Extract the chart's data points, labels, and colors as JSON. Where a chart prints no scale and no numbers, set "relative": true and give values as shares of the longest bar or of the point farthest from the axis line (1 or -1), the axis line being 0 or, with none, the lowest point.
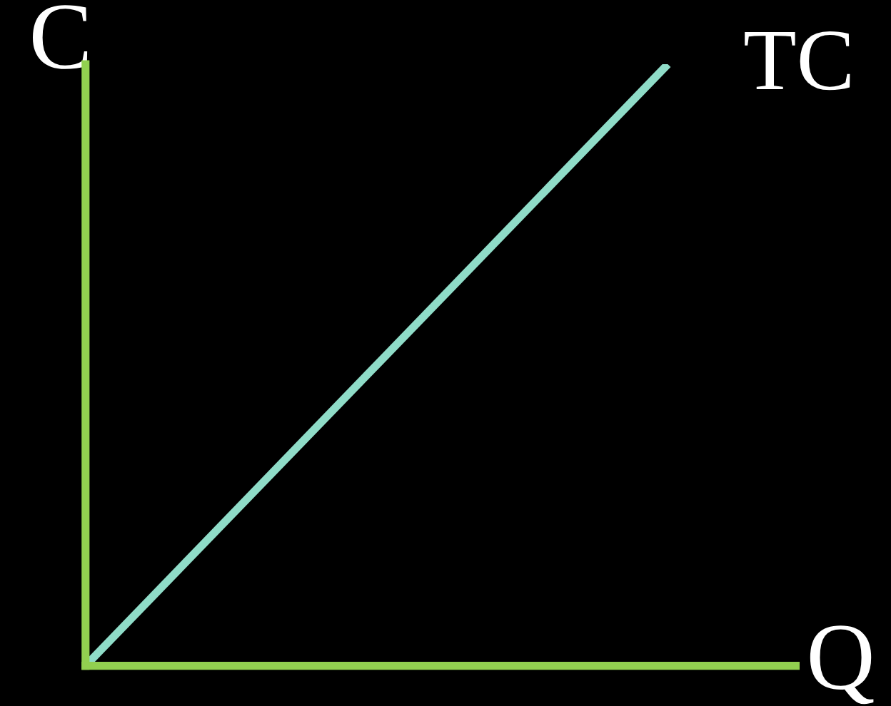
{
  "chart_data": {
    "type": "line",
    "relative": true,
    "xlabel": "Q",
    "ylabel": "C",
    "categories": [
      null,
      null
    ],
    "series": [
      {
        "name": "TC",
        "color": "#8fdcc8",
        "values": [
          0,
          1
        ]
      }
    ],
    "legend": false,
    "marker": "none",
    "line_style": "solid"
  }
}
